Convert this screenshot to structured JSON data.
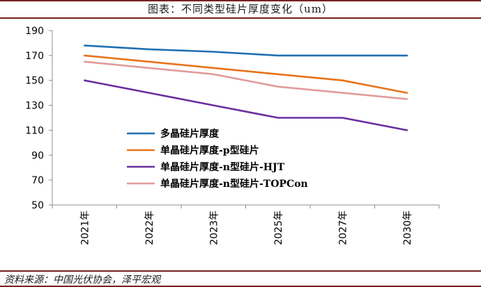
{
  "title": "图表：不同类型硅片厚度变化（um）",
  "source": "资料来源：中国光伏协会，泽平宏观",
  "colors": {
    "rule": "#7a1f1f",
    "axis": "#8c8c8c"
  },
  "chart_data": {
    "type": "line",
    "categories": [
      "2021年",
      "2022年",
      "2023年",
      "2025年",
      "2027年",
      "2030年"
    ],
    "ylim": [
      50,
      190
    ],
    "yticks": [
      50,
      70,
      90,
      110,
      130,
      150,
      170,
      190
    ],
    "grid": false,
    "legend_position": "center",
    "series": [
      {
        "name": "多晶硅片厚度",
        "color": "#1f6fb2",
        "values": [
          178,
          175,
          173,
          170,
          170,
          170
        ]
      },
      {
        "name": "单晶硅片厚度-p型硅片",
        "color": "#e8731a",
        "values": [
          170,
          165,
          160,
          155,
          150,
          140
        ]
      },
      {
        "name": "单晶硅片厚度-n型硅片-HJT",
        "color": "#6b2ea0",
        "values": [
          150,
          140,
          130,
          120,
          120,
          110
        ]
      },
      {
        "name": "单晶硅片厚度-n型硅片-TOPCon",
        "color": "#e29a9a",
        "values": [
          165,
          160,
          155,
          145,
          140,
          135
        ]
      }
    ]
  }
}
